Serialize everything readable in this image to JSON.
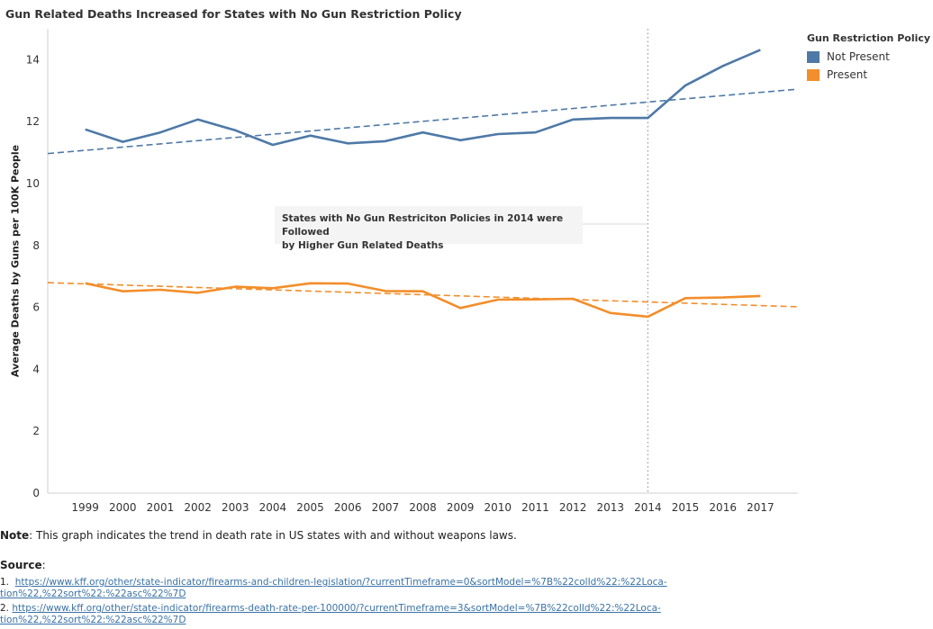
{
  "title": "Gun Related Deaths Increased for States with No Gun Restriction Policy",
  "legend": {
    "title": "Gun Restriction Policy",
    "items": [
      {
        "label": "Not Present",
        "color": "#4e79a7"
      },
      {
        "label": "Present",
        "color": "#f28e2b"
      }
    ]
  },
  "annotation": {
    "line1": "States with No Gun Restriciton Policies in 2014 were Followed",
    "line2": "by Higher Gun Related Deaths"
  },
  "note": {
    "label": "Note",
    "text": ": This graph indicates the trend in death rate in US states with and without weapons laws."
  },
  "source": {
    "label": "Source",
    "colon": ":",
    "items": [
      {
        "num": "1.",
        "line1": "https://www.kff.org/other/state-indicator/firearms-and-children-legislation/?currentTimeframe=0&sortModel=%7B%22colId%22:%22Loca-",
        "line2": "tion%22,%22sort%22:%22asc%22%7D"
      },
      {
        "num": "2.",
        "line1": "https://www.kff.org/other/state-indicator/firearms-death-rate-per-100000/?currentTimeframe=3&sortModel=%7B%22colId%22:%22Loca-",
        "line2": "tion%22,%22sort%22:%22asc%22%7D"
      }
    ]
  },
  "chart_data": {
    "type": "line",
    "title": "Gun Related Deaths Increased for States with No Gun Restriction Policy",
    "xlabel": "",
    "ylabel": "Average Deaths by Guns per 100K People",
    "x": [
      1999,
      2000,
      2001,
      2002,
      2003,
      2004,
      2005,
      2006,
      2007,
      2008,
      2009,
      2010,
      2011,
      2012,
      2013,
      2014,
      2015,
      2016,
      2017
    ],
    "xlim": [
      1998,
      2018
    ],
    "ylim": [
      0,
      15
    ],
    "yticks": [
      0,
      2,
      4,
      6,
      8,
      10,
      12,
      14
    ],
    "grid": false,
    "legend_position": "top-right",
    "reference_line": {
      "x": 2014,
      "style": "dotted"
    },
    "series": [
      {
        "name": "Not Present",
        "color": "#4e79a7",
        "values": [
          11.75,
          11.35,
          11.65,
          12.07,
          11.72,
          11.25,
          11.55,
          11.3,
          11.37,
          11.65,
          11.4,
          11.6,
          11.65,
          12.07,
          12.12,
          12.12,
          13.17,
          13.8,
          14.32
        ],
        "trend": [
          10.97,
          13.05
        ]
      },
      {
        "name": "Present",
        "color": "#f28e2b",
        "values": [
          6.78,
          6.52,
          6.57,
          6.47,
          6.67,
          6.62,
          6.78,
          6.77,
          6.53,
          6.52,
          5.98,
          6.25,
          6.26,
          6.28,
          5.82,
          5.7,
          6.3,
          6.32,
          6.37
        ],
        "trend": [
          6.8,
          6.02
        ]
      }
    ]
  }
}
